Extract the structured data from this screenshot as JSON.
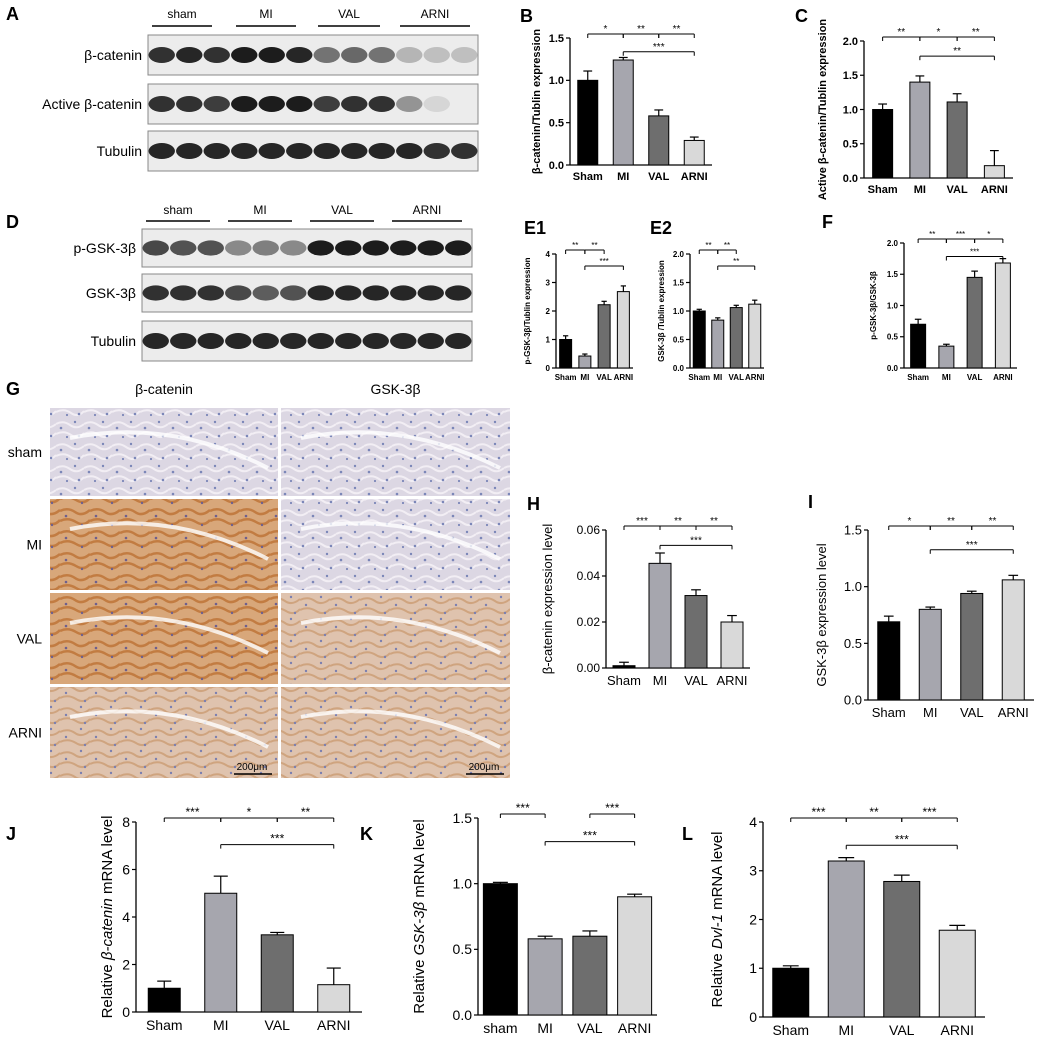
{
  "panel_letters": [
    "A",
    "B",
    "C",
    "D",
    "E1",
    "E2",
    "F",
    "G",
    "H",
    "I",
    "J",
    "K",
    "L"
  ],
  "western_blots": [
    {
      "id": "A",
      "groups": [
        "sham",
        "MI",
        "VAL",
        "ARNI"
      ],
      "rows": [
        "β-catenin",
        "Active β-catenin",
        "Tubulin"
      ]
    },
    {
      "id": "D",
      "groups": [
        "sham",
        "MI",
        "VAL",
        "ARNI"
      ],
      "rows": [
        "p-GSK-3β",
        "GSK-3β",
        "Tubulin"
      ]
    }
  ],
  "ihc": {
    "columns": [
      "β-catenin",
      "GSK-3β"
    ],
    "rows": [
      "sham",
      "MI",
      "VAL",
      "ARNI"
    ],
    "scale_bar": "200μm"
  },
  "colors": {
    "Sham": "#000000",
    "MI": "#a6a6ae",
    "VAL": "#6e6e6e",
    "ARNI": "#d9d9d9"
  },
  "chart_data": [
    {
      "id": "B",
      "type": "bar",
      "categories": [
        "Sham",
        "MI",
        "VAL",
        "ARNI"
      ],
      "values": [
        1.0,
        1.24,
        0.58,
        0.29
      ],
      "errors": [
        0.11,
        0.03,
        0.07,
        0.04
      ],
      "ylabel": "β-catenin/Tublin expression",
      "ylim": [
        0,
        1.5
      ],
      "yticks": [
        0.0,
        0.5,
        1.0,
        1.5
      ],
      "ticklabels": [
        "0.0",
        "0.5",
        "1.0",
        "1.5"
      ],
      "sig": [
        [
          "*",
          0,
          1
        ],
        [
          "**",
          1,
          2
        ],
        [
          "**",
          2,
          3
        ],
        [
          "***",
          1,
          3
        ]
      ]
    },
    {
      "id": "C",
      "type": "bar",
      "categories": [
        "Sham",
        "MI",
        "VAL",
        "ARNI"
      ],
      "values": [
        1.0,
        1.4,
        1.11,
        0.18
      ],
      "errors": [
        0.08,
        0.09,
        0.12,
        0.22
      ],
      "ylabel": "Active β-catenin/Tublin expression",
      "ylim": [
        0,
        2.0
      ],
      "yticks": [
        0.0,
        0.5,
        1.0,
        1.5,
        2.0
      ],
      "ticklabels": [
        "0.0",
        "0.5",
        "1.0",
        "1.5",
        "2.0"
      ],
      "sig": [
        [
          "**",
          0,
          1
        ],
        [
          "*",
          1,
          2
        ],
        [
          "**",
          2,
          3
        ],
        [
          "**",
          1,
          3
        ]
      ]
    },
    {
      "id": "E1",
      "type": "bar",
      "categories": [
        "Sham",
        "MI",
        "VAL",
        "ARNI"
      ],
      "values": [
        1.0,
        0.42,
        2.22,
        2.68
      ],
      "errors": [
        0.13,
        0.07,
        0.12,
        0.2
      ],
      "ylabel": "p-GSK-3β/Tublin expression",
      "ylim": [
        0,
        4
      ],
      "yticks": [
        0,
        1,
        2,
        3,
        4
      ],
      "ticklabels": [
        "0",
        "1",
        "2",
        "3",
        "4"
      ],
      "sig": [
        [
          "**",
          0,
          1
        ],
        [
          "**",
          1,
          2
        ],
        [
          "***",
          1,
          3
        ]
      ]
    },
    {
      "id": "E2",
      "type": "bar",
      "categories": [
        "Sham",
        "MI",
        "VAL",
        "ARNI"
      ],
      "values": [
        1.0,
        0.84,
        1.06,
        1.12
      ],
      "errors": [
        0.03,
        0.04,
        0.04,
        0.07
      ],
      "ylabel": "GSK-3β /Tublin expression",
      "ylim": [
        0,
        2.0
      ],
      "yticks": [
        0.0,
        0.5,
        1.0,
        1.5,
        2.0
      ],
      "ticklabels": [
        "0.0",
        "0.5",
        "1.0",
        "1.5",
        "2.0"
      ],
      "sig": [
        [
          "**",
          0,
          1
        ],
        [
          "**",
          1,
          2
        ],
        [
          "**",
          1,
          3
        ]
      ]
    },
    {
      "id": "F",
      "type": "bar",
      "categories": [
        "Sham",
        "MI",
        "VAL",
        "ARNI"
      ],
      "values": [
        0.7,
        0.35,
        1.45,
        1.68
      ],
      "errors": [
        0.08,
        0.03,
        0.1,
        0.07
      ],
      "ylabel": "p-GSK-3β/GSK-3β",
      "ylim": [
        0,
        2.0
      ],
      "yticks": [
        0.0,
        0.5,
        1.0,
        1.5,
        2.0
      ],
      "ticklabels": [
        "0.0",
        "0.5",
        "1.0",
        "1.5",
        "2.0"
      ],
      "sig": [
        [
          "**",
          0,
          1
        ],
        [
          "***",
          1,
          2
        ],
        [
          "*",
          2,
          3
        ],
        [
          "***",
          1,
          3
        ]
      ]
    },
    {
      "id": "H",
      "type": "bar",
      "categories": [
        "Sham",
        "MI",
        "VAL",
        "ARNI"
      ],
      "values": [
        0.001,
        0.0455,
        0.0315,
        0.02
      ],
      "errors": [
        0.0015,
        0.0045,
        0.0025,
        0.0028
      ],
      "ylabel": "β-catenin expression level",
      "ylim": [
        0,
        0.06
      ],
      "yticks": [
        0,
        0.02,
        0.04,
        0.06
      ],
      "ticklabels": [
        "0.00",
        "0.02",
        "0.04",
        "0.06"
      ],
      "sig": [
        [
          "***",
          0,
          1
        ],
        [
          "**",
          1,
          2
        ],
        [
          "**",
          2,
          3
        ],
        [
          "***",
          1,
          3
        ]
      ]
    },
    {
      "id": "I",
      "type": "bar",
      "categories": [
        "Sham",
        "MI",
        "VAL",
        "ARNI"
      ],
      "values": [
        0.69,
        0.8,
        0.94,
        1.06
      ],
      "errors": [
        0.05,
        0.02,
        0.02,
        0.04
      ],
      "ylabel": "GSK-3β expression level",
      "ylim": [
        0,
        1.5
      ],
      "yticks": [
        0.0,
        0.5,
        1.0,
        1.5
      ],
      "ticklabels": [
        "0.0",
        "0.5",
        "1.0",
        "1.5"
      ],
      "sig": [
        [
          "*",
          0,
          1
        ],
        [
          "**",
          1,
          2
        ],
        [
          "**",
          2,
          3
        ],
        [
          "***",
          1,
          3
        ]
      ]
    },
    {
      "id": "J",
      "type": "bar",
      "categories": [
        "Sham",
        "MI",
        "VAL",
        "ARNI"
      ],
      "values": [
        1.0,
        5.0,
        3.25,
        1.15
      ],
      "errors": [
        0.3,
        0.72,
        0.1,
        0.7
      ],
      "ylabel_parts": [
        "Relative ",
        "β-catenin",
        " mRNA level"
      ],
      "ylim": [
        0,
        8
      ],
      "yticks": [
        0,
        2,
        4,
        6,
        8
      ],
      "ticklabels": [
        "0",
        "2",
        "4",
        "6",
        "8"
      ],
      "sig": [
        [
          "***",
          0,
          1
        ],
        [
          "*",
          1,
          2
        ],
        [
          "**",
          2,
          3
        ],
        [
          "***",
          1,
          3
        ]
      ]
    },
    {
      "id": "K",
      "type": "bar",
      "categories": [
        "sham",
        "MI",
        "VAL",
        "ARNI"
      ],
      "values": [
        1.0,
        0.58,
        0.6,
        0.9
      ],
      "errors": [
        0.01,
        0.02,
        0.04,
        0.02
      ],
      "ylabel_parts": [
        "Relative  ",
        "GSK-3β",
        " mRNA level"
      ],
      "ylim": [
        0,
        1.5
      ],
      "yticks": [
        0.0,
        0.5,
        1.0,
        1.5
      ],
      "ticklabels": [
        "0.0",
        "0.5",
        "1.0",
        "1.5"
      ],
      "sig": [
        [
          "***",
          0,
          1
        ],
        [
          "***",
          2,
          3
        ],
        [
          "***",
          1,
          3
        ]
      ]
    },
    {
      "id": "L",
      "type": "bar",
      "categories": [
        "Sham",
        "MI",
        "VAL",
        "ARNI"
      ],
      "values": [
        1.0,
        3.2,
        2.78,
        1.78
      ],
      "errors": [
        0.05,
        0.07,
        0.13,
        0.1
      ],
      "ylabel_parts": [
        "Relative ",
        "Dvl-1",
        " mRNA level"
      ],
      "ylim": [
        0,
        4
      ],
      "yticks": [
        0,
        1,
        2,
        3,
        4
      ],
      "ticklabels": [
        "0",
        "1",
        "2",
        "3",
        "4"
      ],
      "sig": [
        [
          "***",
          0,
          1
        ],
        [
          "**",
          1,
          2
        ],
        [
          "***",
          2,
          3
        ],
        [
          "***",
          1,
          3
        ]
      ]
    }
  ]
}
